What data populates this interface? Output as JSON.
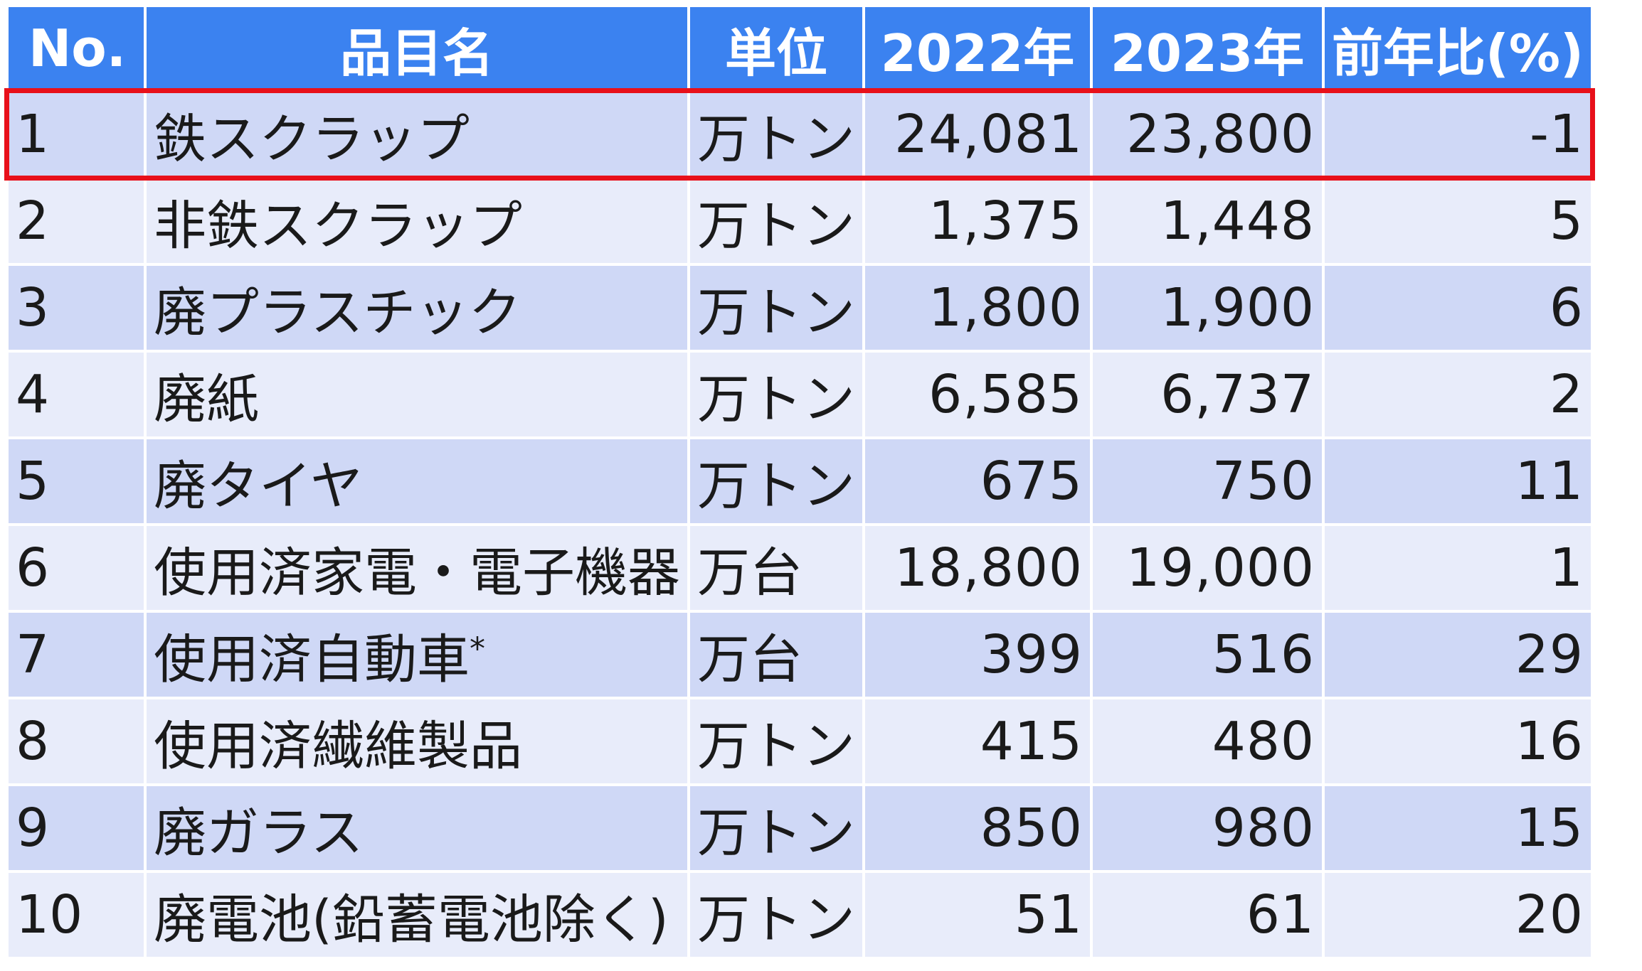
{
  "table": {
    "headers": [
      "No.",
      "品目名",
      "単位",
      "2022年",
      "2023年",
      "前年比(%)"
    ],
    "rows": [
      {
        "no": "1",
        "name": "鉄スクラップ",
        "note": "",
        "unit": "万トン",
        "y2022": "24,081",
        "y2023": "23,800",
        "pct": "-1"
      },
      {
        "no": "2",
        "name": "非鉄スクラップ",
        "note": "",
        "unit": "万トン",
        "y2022": "1,375",
        "y2023": "1,448",
        "pct": "5"
      },
      {
        "no": "3",
        "name": "廃プラスチック",
        "note": "",
        "unit": "万トン",
        "y2022": "1,800",
        "y2023": "1,900",
        "pct": "6"
      },
      {
        "no": "4",
        "name": "廃紙",
        "note": "",
        "unit": "万トン",
        "y2022": "6,585",
        "y2023": "6,737",
        "pct": "2"
      },
      {
        "no": "5",
        "name": "廃タイヤ",
        "note": "",
        "unit": "万トン",
        "y2022": "675",
        "y2023": "750",
        "pct": "11"
      },
      {
        "no": "6",
        "name": "使用済家電・電子機器",
        "note": "",
        "unit": "万台",
        "y2022": "18,800",
        "y2023": "19,000",
        "pct": "1"
      },
      {
        "no": "7",
        "name": "使用済自動車",
        "note": "*",
        "unit": "万台",
        "y2022": "399",
        "y2023": "516",
        "pct": "29"
      },
      {
        "no": "8",
        "name": "使用済繊維製品",
        "note": "",
        "unit": "万トン",
        "y2022": "415",
        "y2023": "480",
        "pct": "16"
      },
      {
        "no": "9",
        "name": "廃ガラス",
        "note": "",
        "unit": "万トン",
        "y2022": "850",
        "y2023": "980",
        "pct": "15"
      },
      {
        "no": "10",
        "name": "廃電池(鉛蓄電池除く)",
        "note": "",
        "unit": "万トン",
        "y2022": "51",
        "y2023": "61",
        "pct": "20"
      }
    ],
    "highlighted_row": "1"
  },
  "colors": {
    "header_bg": "#3b82f0",
    "header_text": "#ffffff",
    "row_odd_bg": "#cfd8f6",
    "row_even_bg": "#e8ecfa",
    "highlight_border": "#e8101a"
  },
  "chart_data": {
    "type": "table",
    "columns": [
      "No.",
      "品目名",
      "単位",
      "2022年",
      "2023年",
      "前年比(%)"
    ],
    "rows": [
      [
        "1",
        "鉄スクラップ",
        "万トン",
        24081,
        23800,
        -1
      ],
      [
        "2",
        "非鉄スクラップ",
        "万トン",
        1375,
        1448,
        5
      ],
      [
        "3",
        "廃プラスチック",
        "万トン",
        1800,
        1900,
        6
      ],
      [
        "4",
        "廃紙",
        "万トン",
        6585,
        6737,
        2
      ],
      [
        "5",
        "廃タイヤ",
        "万トン",
        675,
        750,
        11
      ],
      [
        "6",
        "使用済家電・電子機器",
        "万台",
        18800,
        19000,
        1
      ],
      [
        "7",
        "使用済自動車*",
        "万台",
        399,
        516,
        29
      ],
      [
        "8",
        "使用済繊維製品",
        "万トン",
        415,
        480,
        16
      ],
      [
        "9",
        "廃ガラス",
        "万トン",
        850,
        980,
        15
      ],
      [
        "10",
        "廃電池(鉛蓄電池除く)",
        "万トン",
        51,
        61,
        20
      ]
    ]
  }
}
